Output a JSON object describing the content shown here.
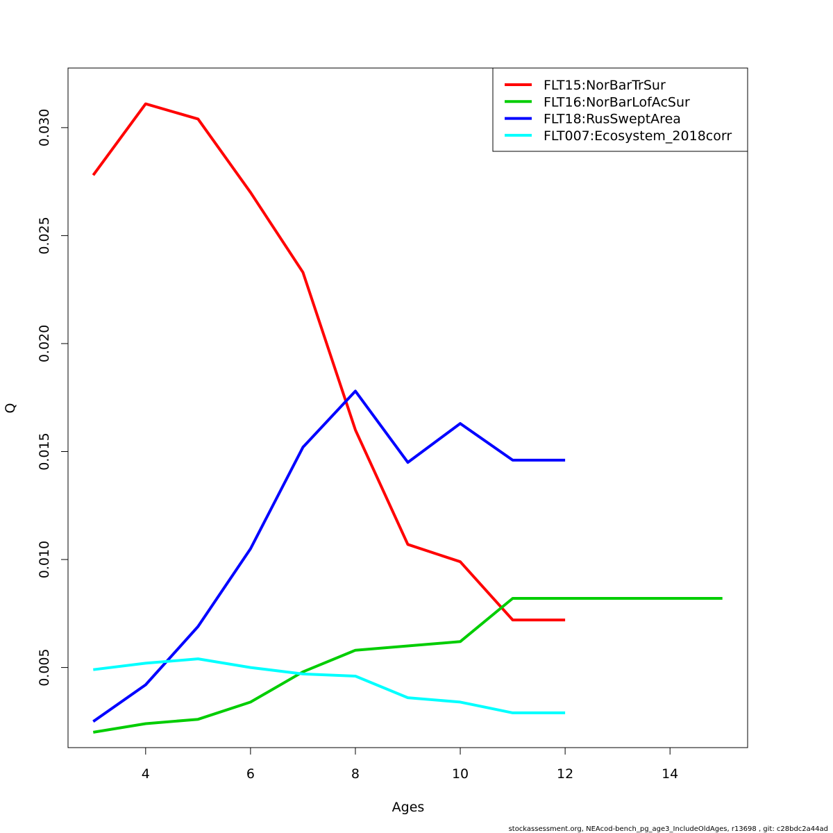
{
  "chart_data": {
    "type": "line",
    "xlabel": "Ages",
    "ylabel": "Q",
    "xlim": [
      2.52,
      15.48
    ],
    "ylim": [
      0.00129,
      0.03276
    ],
    "xticks": [
      4,
      6,
      8,
      10,
      12,
      14
    ],
    "yticks": [
      0.005,
      0.01,
      0.015,
      0.02,
      0.025,
      0.03
    ],
    "ytick_labels": [
      "0.005",
      "0.010",
      "0.015",
      "0.020",
      "0.025",
      "0.030"
    ],
    "grid": false,
    "legend_position": "top-right",
    "series": [
      {
        "name": "FLT15:NorBarTrSur",
        "color": "#ff0000",
        "x": [
          3,
          4,
          5,
          6,
          7,
          8,
          9,
          10,
          11,
          12
        ],
        "y": [
          0.0278,
          0.0311,
          0.0304,
          0.027,
          0.0233,
          0.016,
          0.0107,
          0.0099,
          0.0072,
          0.0072
        ]
      },
      {
        "name": "FLT16:NorBarLofAcSur",
        "color": "#00cd00",
        "x": [
          3,
          4,
          5,
          6,
          7,
          8,
          9,
          10,
          11,
          12,
          13,
          14,
          15
        ],
        "y": [
          0.002,
          0.0024,
          0.0026,
          0.0034,
          0.0048,
          0.0058,
          0.006,
          0.0062,
          0.0082,
          0.0082,
          0.0082,
          0.0082,
          0.0082
        ]
      },
      {
        "name": "FLT18:RusSweptArea",
        "color": "#0000ff",
        "x": [
          3,
          4,
          5,
          6,
          7,
          8,
          9,
          10,
          11,
          12
        ],
        "y": [
          0.0025,
          0.0042,
          0.0069,
          0.0105,
          0.0152,
          0.0178,
          0.0145,
          0.0163,
          0.0146,
          0.0146
        ]
      },
      {
        "name": "FLT007:Ecosystem_2018corr",
        "color": "#00ffff",
        "x": [
          3,
          4,
          5,
          6,
          7,
          8,
          9,
          10,
          11,
          12
        ],
        "y": [
          0.0049,
          0.0052,
          0.0054,
          0.005,
          0.0047,
          0.0046,
          0.0036,
          0.0034,
          0.0029,
          0.0029
        ]
      }
    ]
  },
  "footer": "stockassessment.org, NEAcod-bench_pg_age3_IncludeOldAges, r13698 , git: c28bdc2a44ad"
}
